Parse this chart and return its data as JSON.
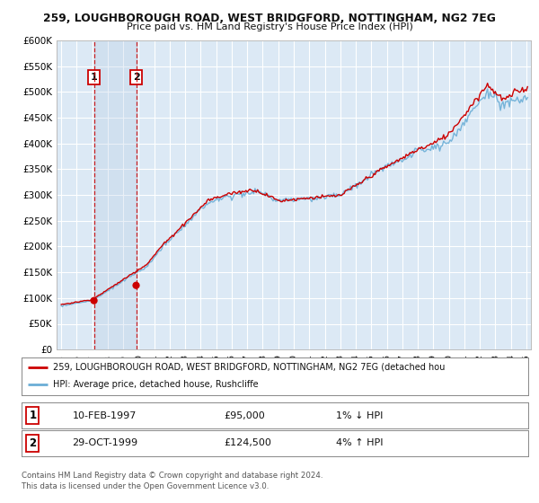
{
  "title1": "259, LOUGHBOROUGH ROAD, WEST BRIDGFORD, NOTTINGHAM, NG2 7EG",
  "title2": "Price paid vs. HM Land Registry's House Price Index (HPI)",
  "background_color": "#ffffff",
  "plot_bg_color": "#dce9f5",
  "grid_color": "#ffffff",
  "sale1_date_num": 1997.11,
  "sale1_price": 95000,
  "sale1_label": "1",
  "sale2_date_num": 1999.83,
  "sale2_price": 124500,
  "sale2_label": "2",
  "legend_line1": "259, LOUGHBOROUGH ROAD, WEST BRIDGFORD, NOTTINGHAM, NG2 7EG (detached hou",
  "legend_line2": "HPI: Average price, detached house, Rushcliffe",
  "table_rows": [
    [
      "1",
      "10-FEB-1997",
      "£95,000",
      "1% ↓ HPI"
    ],
    [
      "2",
      "29-OCT-1999",
      "£124,500",
      "4% ↑ HPI"
    ]
  ],
  "footer": "Contains HM Land Registry data © Crown copyright and database right 2024.\nThis data is licensed under the Open Government Licence v3.0.",
  "hpi_color": "#6baed6",
  "price_color": "#cc0000",
  "vline_color": "#cc0000",
  "sale_marker_color": "#cc0000",
  "ylim_min": 0,
  "ylim_max": 600000,
  "xlim_min": 1994.7,
  "xlim_max": 2025.3
}
